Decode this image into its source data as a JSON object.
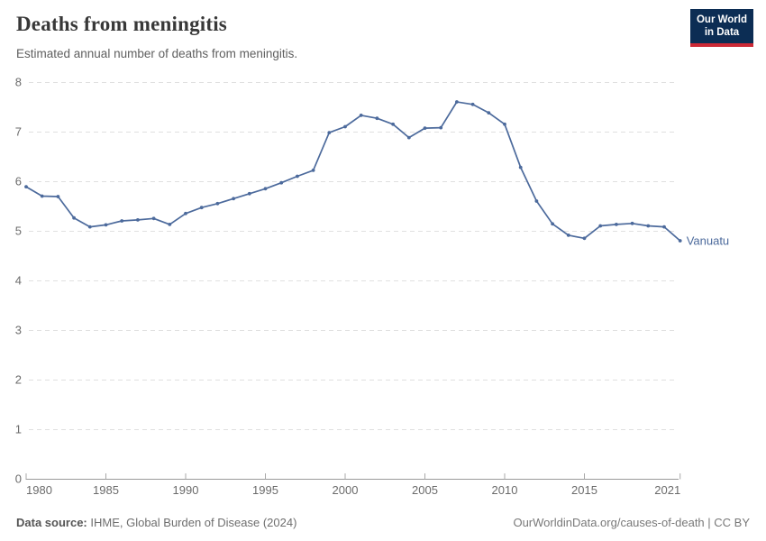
{
  "header": {
    "title": "Deaths from meningitis",
    "subtitle": "Estimated annual number of deaths from meningitis."
  },
  "logo": {
    "line1": "Our World",
    "line2": "in Data",
    "bg_color": "#0c2d54",
    "bar_color": "#cc2936"
  },
  "footer": {
    "source_label": "Data source:",
    "source_text": " IHME, Global Burden of Disease (2024)",
    "link_text": "OurWorldinData.org/causes-of-death | CC BY"
  },
  "chart_data": {
    "type": "line",
    "title": "Deaths from meningitis",
    "subtitle": "Estimated annual number of deaths from meningitis.",
    "xlabel": "",
    "ylabel": "",
    "x": [
      1980,
      1981,
      1982,
      1983,
      1984,
      1985,
      1986,
      1987,
      1988,
      1989,
      1990,
      1991,
      1992,
      1993,
      1994,
      1995,
      1996,
      1997,
      1998,
      1999,
      2000,
      2001,
      2002,
      2003,
      2004,
      2005,
      2006,
      2007,
      2008,
      2009,
      2010,
      2011,
      2012,
      2013,
      2014,
      2015,
      2016,
      2017,
      2018,
      2019,
      2020,
      2021
    ],
    "series": [
      {
        "name": "Vanuatu",
        "color": "#4C6A9C",
        "values": [
          5.89,
          5.7,
          5.69,
          5.26,
          5.08,
          5.12,
          5.2,
          5.22,
          5.25,
          5.13,
          5.35,
          5.47,
          5.55,
          5.65,
          5.75,
          5.85,
          5.97,
          6.1,
          6.22,
          6.98,
          7.1,
          7.33,
          7.27,
          7.15,
          6.88,
          7.07,
          7.08,
          7.6,
          7.55,
          7.38,
          7.15,
          6.28,
          5.6,
          5.14,
          4.91,
          4.85,
          5.1,
          5.13,
          5.15,
          5.1,
          5.08,
          4.8
        ]
      }
    ],
    "x_ticks": [
      1980,
      1985,
      1990,
      1995,
      2000,
      2005,
      2010,
      2015,
      2021
    ],
    "y_ticks": [
      0,
      1,
      2,
      3,
      4,
      5,
      6,
      7,
      8
    ],
    "ylim": [
      0,
      8
    ],
    "xlim": [
      1980,
      2021
    ],
    "grid": "horizontal-dashed",
    "legend": "end-of-line-label",
    "colors": {
      "grid": "#e0e0e0",
      "axis": "#9a9a9a",
      "tick": "#a8a8a8",
      "tick_label": "#6b6b6b"
    }
  }
}
